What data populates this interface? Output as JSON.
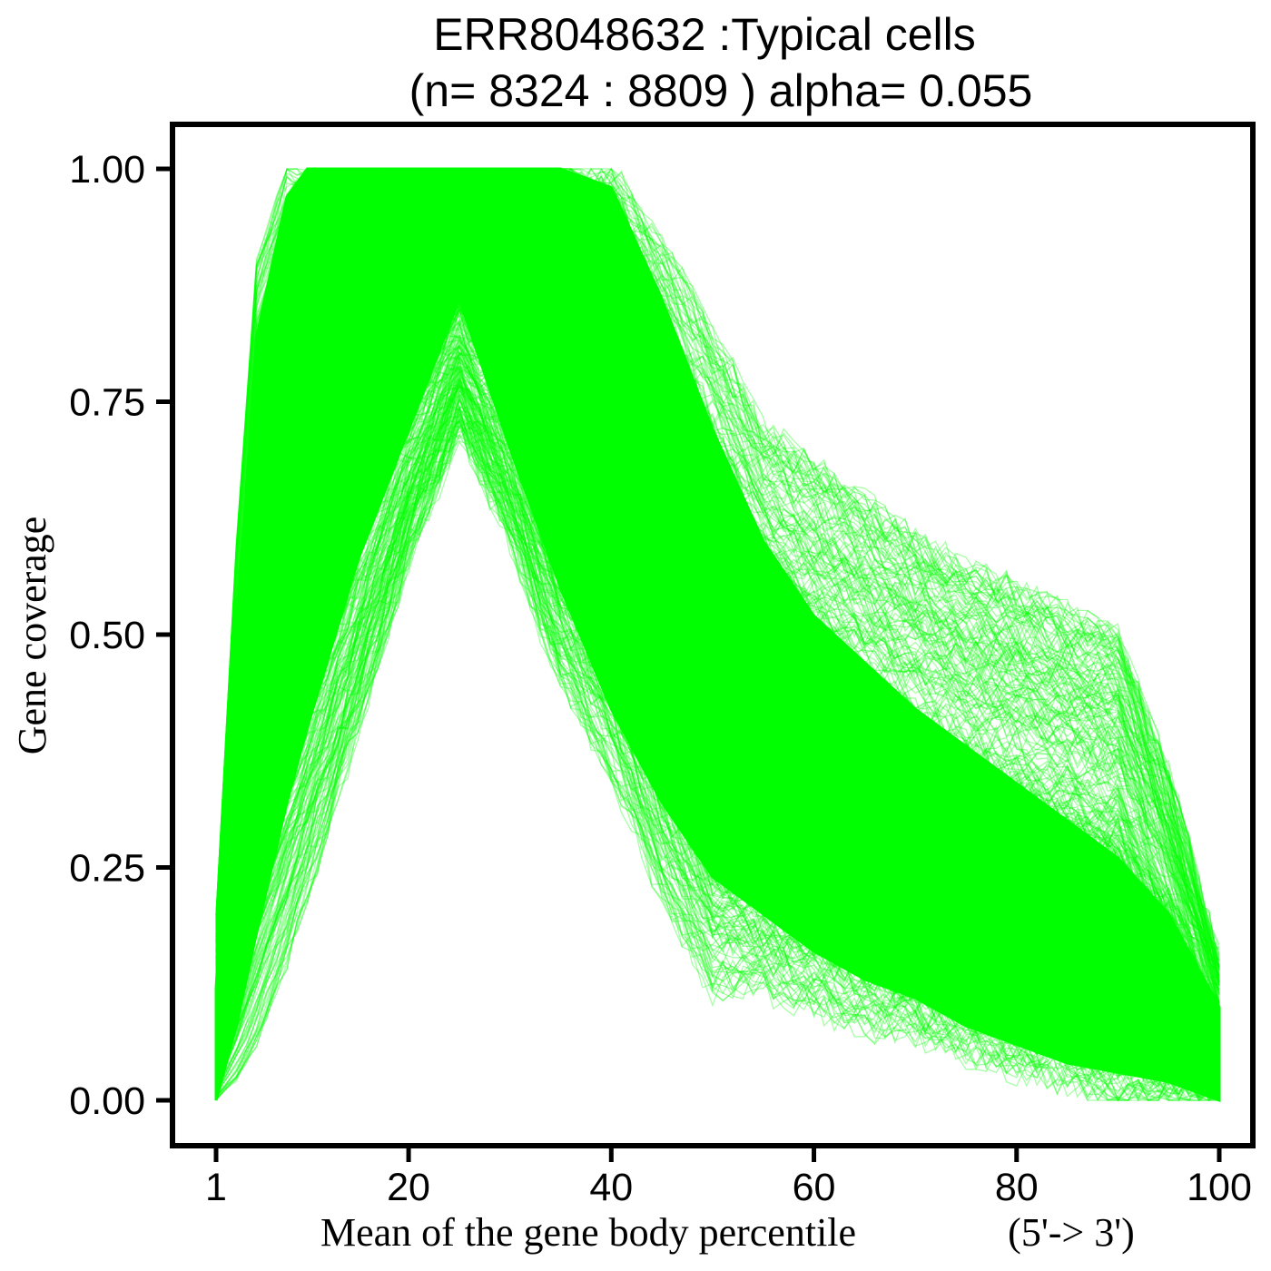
{
  "chart_data": {
    "type": "line",
    "title_line1": "ERR8048632 :Typical cells",
    "title_line2": "(n= 8324 : 8809 ) alpha= 0.055",
    "xlabel": "Mean of the gene body percentile",
    "xlabel_suffix": "(5'-> 3')",
    "ylabel": "Gene coverage",
    "xlim": [
      1,
      100
    ],
    "ylim": [
      0,
      1
    ],
    "x_ticks": [
      1,
      20,
      40,
      60,
      80,
      100
    ],
    "x_tick_labels": [
      "1",
      "20",
      "40",
      "60",
      "80",
      "100"
    ],
    "y_ticks": [
      0,
      0.25,
      0.5,
      0.75,
      1.0
    ],
    "y_tick_labels": [
      "0.00",
      "0.25",
      "0.50",
      "0.75",
      "1.00"
    ],
    "grid": false,
    "legend": "none",
    "line_color": "#00ff00",
    "line_alpha": 0.055,
    "n_cells_shown": 8324,
    "n_cells_total": 8809,
    "envelope": {
      "x": [
        1,
        3,
        5,
        8,
        10,
        15,
        20,
        25,
        30,
        35,
        40,
        45,
        50,
        55,
        60,
        65,
        70,
        75,
        80,
        85,
        90,
        95,
        100
      ],
      "upper": [
        0.2,
        0.6,
        0.9,
        1.0,
        1.0,
        1.0,
        1.0,
        1.0,
        1.0,
        1.0,
        1.0,
        0.92,
        0.82,
        0.72,
        0.68,
        0.64,
        0.6,
        0.57,
        0.55,
        0.52,
        0.5,
        0.35,
        0.15
      ],
      "core_upper": [
        0.12,
        0.5,
        0.82,
        0.97,
        1.0,
        1.0,
        1.0,
        1.0,
        1.0,
        1.0,
        0.98,
        0.86,
        0.72,
        0.6,
        0.52,
        0.47,
        0.42,
        0.38,
        0.34,
        0.3,
        0.26,
        0.2,
        0.1
      ],
      "core_lower": [
        0.0,
        0.08,
        0.18,
        0.32,
        0.4,
        0.58,
        0.72,
        0.86,
        0.7,
        0.55,
        0.42,
        0.32,
        0.24,
        0.2,
        0.16,
        0.13,
        0.11,
        0.08,
        0.06,
        0.04,
        0.03,
        0.02,
        0.0
      ],
      "lower": [
        0.0,
        0.02,
        0.06,
        0.15,
        0.22,
        0.4,
        0.58,
        0.72,
        0.6,
        0.45,
        0.35,
        0.22,
        0.12,
        0.12,
        0.1,
        0.08,
        0.07,
        0.05,
        0.03,
        0.02,
        0.0,
        0.0,
        0.0
      ]
    }
  }
}
